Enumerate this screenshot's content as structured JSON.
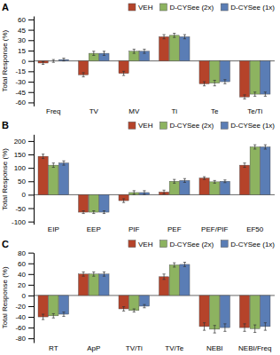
{
  "chart_data": [
    {
      "type": "bar",
      "title": "A",
      "categories": [
        "Freq",
        "TV",
        "MV",
        "Ti",
        "Te",
        "Te/Ti"
      ],
      "series": [
        {
          "name": "VEH",
          "color": "#b5432a",
          "values": [
            -3,
            -20,
            -18,
            35,
            -33,
            -52
          ],
          "errors": [
            2,
            3,
            3,
            3,
            3,
            3
          ]
        },
        {
          "name": "D-CYSee (2x)",
          "color": "#8db360",
          "values": [
            0,
            11,
            14,
            37,
            -32,
            -48
          ],
          "errors": [
            2,
            3,
            3,
            3,
            4,
            3
          ]
        },
        {
          "name": "D-CYSee (1x)",
          "color": "#5a7db5",
          "values": [
            2,
            11,
            14,
            35,
            -30,
            -48
          ],
          "errors": [
            2,
            3,
            3,
            3,
            3,
            3
          ]
        }
      ],
      "ylabel": "Total Response (%)",
      "ylim": [
        -65,
        65
      ],
      "yticks": [
        -60,
        -45,
        -30,
        -15,
        0,
        15,
        30,
        45,
        60
      ],
      "legend": "upper right"
    },
    {
      "type": "bar",
      "title": "B",
      "categories": [
        "EIP",
        "EEP",
        "PIF",
        "PEF",
        "PEF/PIF",
        "EF50"
      ],
      "series": [
        {
          "name": "VEH",
          "color": "#b5432a",
          "values": [
            143,
            -65,
            -22,
            10,
            62,
            110
          ],
          "errors": [
            8,
            5,
            7,
            7,
            5,
            8
          ]
        },
        {
          "name": "D-CYSee (2x)",
          "color": "#8db360",
          "values": [
            110,
            -65,
            8,
            50,
            48,
            178
          ],
          "errors": [
            8,
            5,
            7,
            7,
            5,
            8
          ]
        },
        {
          "name": "D-CYSee (1x)",
          "color": "#5a7db5",
          "values": [
            118,
            -65,
            8,
            53,
            50,
            178
          ],
          "errors": [
            8,
            5,
            7,
            7,
            5,
            8
          ]
        }
      ],
      "ylabel": "Total Response (%)",
      "ylim": [
        -110,
        225
      ],
      "yticks": [
        -100,
        -50,
        0,
        50,
        100,
        150,
        200
      ],
      "legend": "upper right"
    },
    {
      "type": "bar",
      "title": "C",
      "categories": [
        "RT",
        "ApP",
        "TV/Ti",
        "TV/Te",
        "NEBI",
        "NEBI/Freq"
      ],
      "series": [
        {
          "name": "VEH",
          "color": "#b5432a",
          "values": [
            -40,
            40,
            -25,
            35,
            -58,
            -60
          ],
          "errors": [
            5,
            4,
            4,
            5,
            7,
            7
          ]
        },
        {
          "name": "D-CYSee (2x)",
          "color": "#8db360",
          "values": [
            -38,
            40,
            -28,
            57,
            -63,
            -62
          ],
          "errors": [
            4,
            4,
            3,
            4,
            7,
            7
          ]
        },
        {
          "name": "D-CYSee (1x)",
          "color": "#5a7db5",
          "values": [
            -35,
            40,
            -20,
            58,
            -60,
            -58
          ],
          "errors": [
            4,
            4,
            3,
            4,
            7,
            7
          ]
        }
      ],
      "ylabel": "Total Response (%)",
      "ylim": [
        -88,
        80
      ],
      "yticks": [
        -80,
        -60,
        -40,
        -20,
        0,
        20,
        40,
        60,
        80
      ],
      "legend": "upper right"
    }
  ]
}
